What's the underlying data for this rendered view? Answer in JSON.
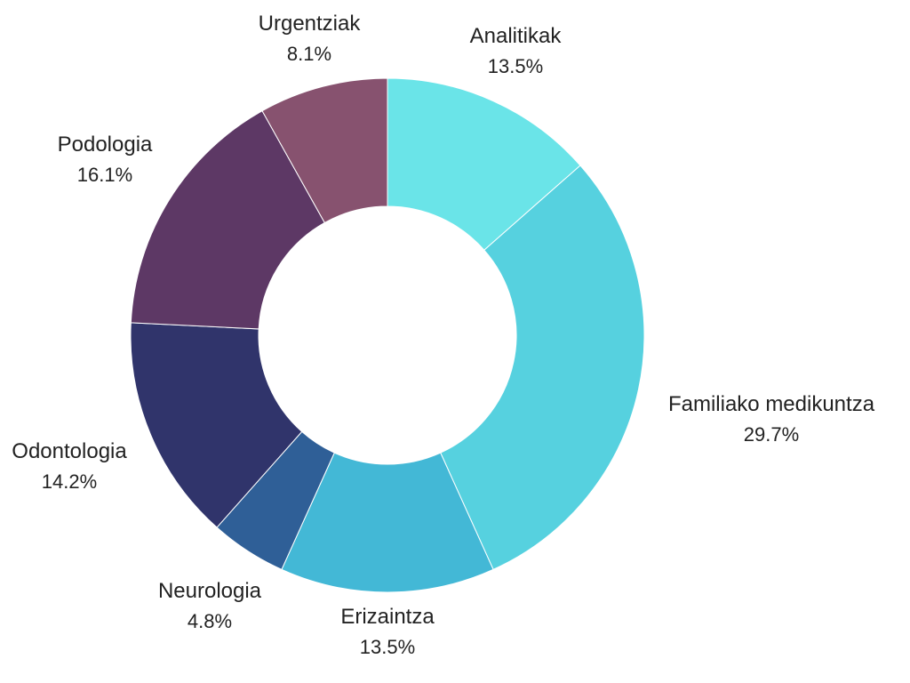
{
  "chart_data": {
    "type": "pie",
    "style": "donut",
    "start_angle_deg": 0,
    "direction": "clockwise",
    "slices": [
      {
        "label": "Analitikak",
        "value": 13.5,
        "display": "13.5%",
        "color": "#6ae4e8"
      },
      {
        "label": "Familiako medikuntza",
        "value": 29.7,
        "display": "29.7%",
        "color": "#56d1df"
      },
      {
        "label": "Erizaintza",
        "value": 13.5,
        "display": "13.5%",
        "color": "#43b8d6"
      },
      {
        "label": "Neurologia",
        "value": 4.8,
        "display": "4.8%",
        "color": "#2f5f97"
      },
      {
        "label": "Odontologia",
        "value": 14.2,
        "display": "14.2%",
        "color": "#30346b"
      },
      {
        "label": "Podologia",
        "value": 16.1,
        "display": "16.1%",
        "color": "#5d3865"
      },
      {
        "label": "Urgentziak",
        "value": 8.1,
        "display": "8.1%",
        "color": "#87526f"
      }
    ]
  }
}
